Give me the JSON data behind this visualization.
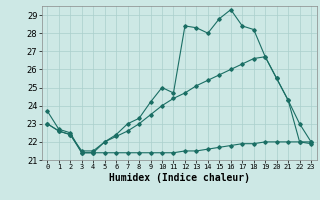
{
  "xlabel": "Humidex (Indice chaleur)",
  "xlim": [
    -0.5,
    23.5
  ],
  "ylim": [
    21,
    29.5
  ],
  "yticks": [
    21,
    22,
    23,
    24,
    25,
    26,
    27,
    28,
    29
  ],
  "xticks": [
    0,
    1,
    2,
    3,
    4,
    5,
    6,
    7,
    8,
    9,
    10,
    11,
    12,
    13,
    14,
    15,
    16,
    17,
    18,
    19,
    20,
    21,
    22,
    23
  ],
  "bg_color": "#cde8e5",
  "grid_color": "#aacfcc",
  "line_color": "#1a6e64",
  "line1_x": [
    0,
    1,
    2,
    3,
    4,
    5,
    6,
    7,
    8,
    9,
    10,
    11,
    12,
    13,
    14,
    15,
    16,
    17,
    18,
    19,
    20,
    21,
    22,
    23
  ],
  "line1_y": [
    23.7,
    22.7,
    22.5,
    21.4,
    21.4,
    22.0,
    22.4,
    23.0,
    23.3,
    24.2,
    25.0,
    24.7,
    28.4,
    28.3,
    28.0,
    28.8,
    29.3,
    28.4,
    28.2,
    26.7,
    25.5,
    24.3,
    23.0,
    22.0
  ],
  "line2_x": [
    0,
    1,
    2,
    3,
    4,
    5,
    6,
    7,
    8,
    9,
    10,
    11,
    12,
    13,
    14,
    15,
    16,
    17,
    18,
    19,
    20,
    21,
    22,
    23
  ],
  "line2_y": [
    23.0,
    22.6,
    22.4,
    21.4,
    21.4,
    21.4,
    21.4,
    21.4,
    21.4,
    21.4,
    21.4,
    21.4,
    21.5,
    21.5,
    21.6,
    21.7,
    21.8,
    21.9,
    21.9,
    22.0,
    22.0,
    22.0,
    22.0,
    21.9
  ],
  "line3_x": [
    0,
    1,
    2,
    3,
    4,
    5,
    6,
    7,
    8,
    9,
    10,
    11,
    12,
    13,
    14,
    15,
    16,
    17,
    18,
    19,
    20,
    21,
    22,
    23
  ],
  "line3_y": [
    23.0,
    22.6,
    22.4,
    21.5,
    21.5,
    22.0,
    22.3,
    22.6,
    23.0,
    23.5,
    24.0,
    24.4,
    24.7,
    25.1,
    25.4,
    25.7,
    26.0,
    26.3,
    26.6,
    26.7,
    25.5,
    24.3,
    22.0,
    22.0
  ]
}
